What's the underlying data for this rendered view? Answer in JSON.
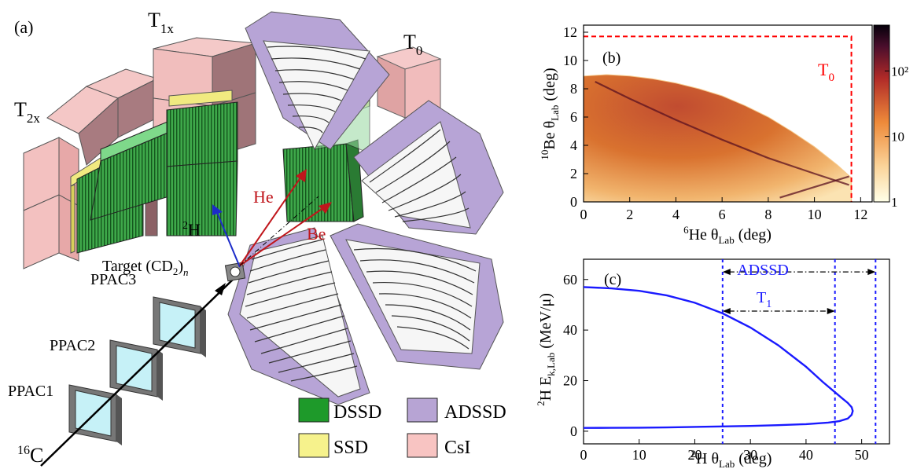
{
  "panel_a": {
    "label": "(a)",
    "detector_groups": {
      "t2x": "T",
      "t2x_sub": "2x",
      "t1x": "T",
      "t1x_sub": "1x",
      "t0": "T",
      "t0_sub": "0"
    },
    "target": {
      "text": "Target (CD",
      "sub2": "2",
      "close": ")",
      "subn": "n"
    },
    "ppacs": [
      "PPAC3",
      "PPAC2",
      "PPAC1"
    ],
    "beam": {
      "sup": "16",
      "text": "C"
    },
    "tracks": {
      "h2_sup": "2",
      "h2_text": "H",
      "he": "He",
      "be": "Be"
    },
    "legend": [
      {
        "name": "DSSD",
        "color": "#1e9a2a"
      },
      {
        "name": "ADSSD",
        "color": "#b7a4d4"
      },
      {
        "name": "SSD",
        "color": "#f6f28c"
      },
      {
        "name": "CsI",
        "color": "#f8c4c2"
      }
    ],
    "colors": {
      "dssd": "#3fa24a",
      "ssd": "#f0ea7a",
      "csi": "#f4c2c2",
      "adssd": "#b9a7d6",
      "ppac_window": "#c6f1f7",
      "track_h": "#1c2bc9",
      "track_red": "#c0161c"
    }
  },
  "chart_data": [
    {
      "type": "heatmap",
      "label": "(b)",
      "xlabel_sup": "6",
      "xlabel_main": "He θ",
      "xlabel_sub": "Lab",
      "xlabel_unit": "(deg)",
      "ylabel_sup": "10",
      "ylabel_main": "Be θ",
      "ylabel_sub": "Lab",
      "ylabel_unit": "(deg)",
      "xlim": [
        0,
        12.5
      ],
      "ylim": [
        0,
        12.5
      ],
      "xticks": [
        0,
        2,
        4,
        6,
        8,
        10,
        12
      ],
      "yticks": [
        0,
        2,
        4,
        6,
        8,
        10,
        12
      ],
      "colorbar": {
        "scale": "log",
        "ticks": [
          1,
          10,
          100
        ],
        "tick_labels": [
          "1",
          "10",
          "10²"
        ],
        "range": [
          1,
          500
        ]
      },
      "region_label": {
        "text": "T",
        "sub": "0"
      },
      "t0_box": {
        "x_max": 11.6,
        "y_max": 11.7,
        "color": "#ff0000"
      },
      "locus_edge": [
        [
          0,
          8.9
        ],
        [
          1.0,
          9.0
        ],
        [
          2.0,
          8.9
        ],
        [
          3.0,
          8.7
        ],
        [
          4.0,
          8.4
        ],
        [
          5.0,
          8.0
        ],
        [
          6.0,
          7.5
        ],
        [
          7.0,
          6.8
        ],
        [
          8.0,
          6.0
        ],
        [
          9.0,
          5.0
        ],
        [
          10.0,
          3.9
        ],
        [
          11.0,
          2.6
        ],
        [
          11.6,
          1.7
        ]
      ],
      "ridge": [
        [
          0.5,
          8.5
        ],
        [
          2.0,
          7.3
        ],
        [
          4.0,
          5.8
        ],
        [
          6.0,
          4.4
        ],
        [
          8.0,
          3.1
        ],
        [
          10.0,
          2.0
        ],
        [
          11.5,
          1.2
        ]
      ],
      "ridge2": [
        [
          8.5,
          0.3
        ],
        [
          9.5,
          0.8
        ],
        [
          10.5,
          1.3
        ],
        [
          11.5,
          1.8
        ]
      ]
    },
    {
      "type": "line",
      "label": "(c)",
      "xlabel_sup": "2",
      "xlabel_main": "H θ",
      "xlabel_sub": "Lab",
      "xlabel_unit": "(deg)",
      "ylabel_sup": "2",
      "ylabel_main": "H E",
      "ylabel_sub": "k,Lab",
      "ylabel_unit": "(MeV/μ)",
      "xlim": [
        0,
        55
      ],
      "ylim": [
        -5,
        68
      ],
      "xticks": [
        0,
        10,
        20,
        30,
        40,
        50
      ],
      "yticks": [
        0,
        20,
        40,
        60
      ],
      "series": [
        {
          "color": "#1a1aff",
          "x": [
            0,
            5,
            10,
            15,
            20,
            25,
            30,
            35,
            40,
            43,
            45,
            46.5,
            47.5,
            48.2,
            48.4,
            48.2,
            47.5,
            46,
            44,
            40,
            35,
            30,
            25,
            20,
            15,
            10,
            5,
            0
          ],
          "y": [
            57,
            56.5,
            55.5,
            53.7,
            50.8,
            46.6,
            41.0,
            34.0,
            25.5,
            19.5,
            15.8,
            13.0,
            11.2,
            9.5,
            8.0,
            6.5,
            5.0,
            4.0,
            3.4,
            2.8,
            2.4,
            2.1,
            1.9,
            1.7,
            1.5,
            1.4,
            1.35,
            1.3
          ]
        }
      ],
      "ranges": [
        {
          "name": "ADSSD",
          "x0": 25,
          "x1": 52.5,
          "y": 63,
          "color": "#1a1aff"
        },
        {
          "name": "T",
          "sub": "1",
          "x0": 25,
          "x1": 45.2,
          "y": 47.5,
          "color": "#1a1aff"
        }
      ],
      "vlines": [
        25,
        45.2,
        52.5
      ]
    }
  ]
}
